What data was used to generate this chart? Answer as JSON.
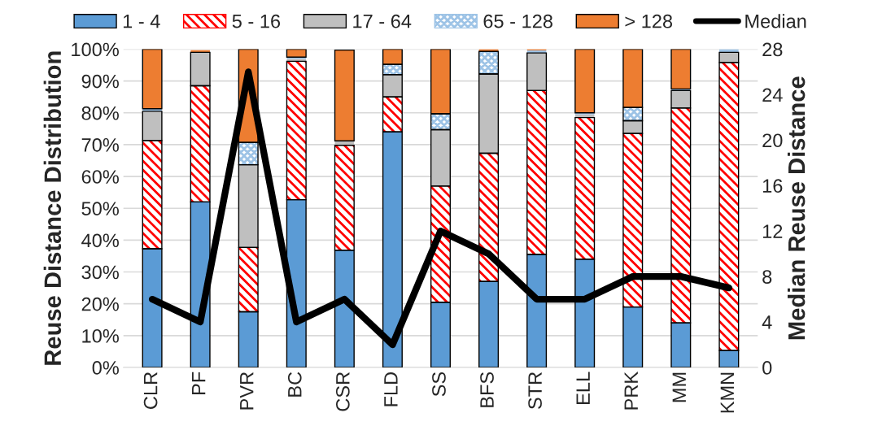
{
  "chart_data": {
    "type": "bar",
    "stacked": true,
    "ylabel": "Reuse Distance Distribution",
    "y2label": "Median Reuse Distance",
    "categories": [
      "CLR",
      "PF",
      "PVR",
      "BC",
      "CSR",
      "FLD",
      "SS",
      "BFS",
      "STR",
      "ELL",
      "PRK",
      "MM",
      "KMN"
    ],
    "series": [
      {
        "name": "1 - 4",
        "color": "#5b9bd5",
        "values": [
          37.3,
          52,
          17.5,
          52.7,
          36.8,
          74,
          20.5,
          27,
          35.5,
          34,
          19,
          14,
          5.3
        ]
      },
      {
        "name": "5 - 16",
        "color": "#ff0000",
        "values": [
          34,
          36.5,
          20.2,
          43.5,
          33,
          11,
          36.5,
          40.3,
          51.5,
          44.5,
          54.5,
          67.5,
          90.5
        ]
      },
      {
        "name": "17 - 64",
        "color": "#bfbfbf",
        "values": [
          9.2,
          10.5,
          26,
          0.8,
          1.4,
          7,
          17.7,
          24.9,
          11.8,
          1,
          4,
          5.5,
          3.2
        ]
      },
      {
        "name": "65 - 128",
        "color": "#9dc3e6",
        "values": [
          0.8,
          null,
          7,
          0.5,
          null,
          3.2,
          5,
          7.1,
          0.8,
          0.5,
          4.2,
          0.5,
          1
        ]
      },
      {
        "name": "> 128",
        "color": "#ed7d31",
        "values": [
          18.7,
          0.7,
          29.3,
          2.5,
          28.5,
          4.8,
          20.3,
          0.7,
          0.4,
          20,
          18.3,
          12.5,
          0
        ]
      },
      {
        "name": "Median",
        "type": "line",
        "axis": "y2",
        "color": "#000000",
        "values": [
          6,
          4,
          26,
          4,
          6,
          2,
          12,
          10,
          6,
          6,
          8,
          8,
          7
        ]
      }
    ],
    "ylim": [
      0,
      100
    ],
    "yticks": [
      {
        "value": 0,
        "label": "0%"
      },
      {
        "value": 10,
        "label": "10%"
      },
      {
        "value": 20,
        "label": "20%"
      },
      {
        "value": 30,
        "label": "30%"
      },
      {
        "value": 40,
        "label": "40%"
      },
      {
        "value": 50,
        "label": "50%"
      },
      {
        "value": 60,
        "label": "60%"
      },
      {
        "value": 70,
        "label": "70%"
      },
      {
        "value": 80,
        "label": "80%"
      },
      {
        "value": 90,
        "label": "90%"
      },
      {
        "value": 100,
        "label": "100%"
      }
    ],
    "y2lim": [
      0,
      28
    ],
    "y2ticks": [
      0,
      4,
      8,
      12,
      16,
      20,
      24,
      28
    ],
    "grid": "y",
    "legend": "top"
  }
}
